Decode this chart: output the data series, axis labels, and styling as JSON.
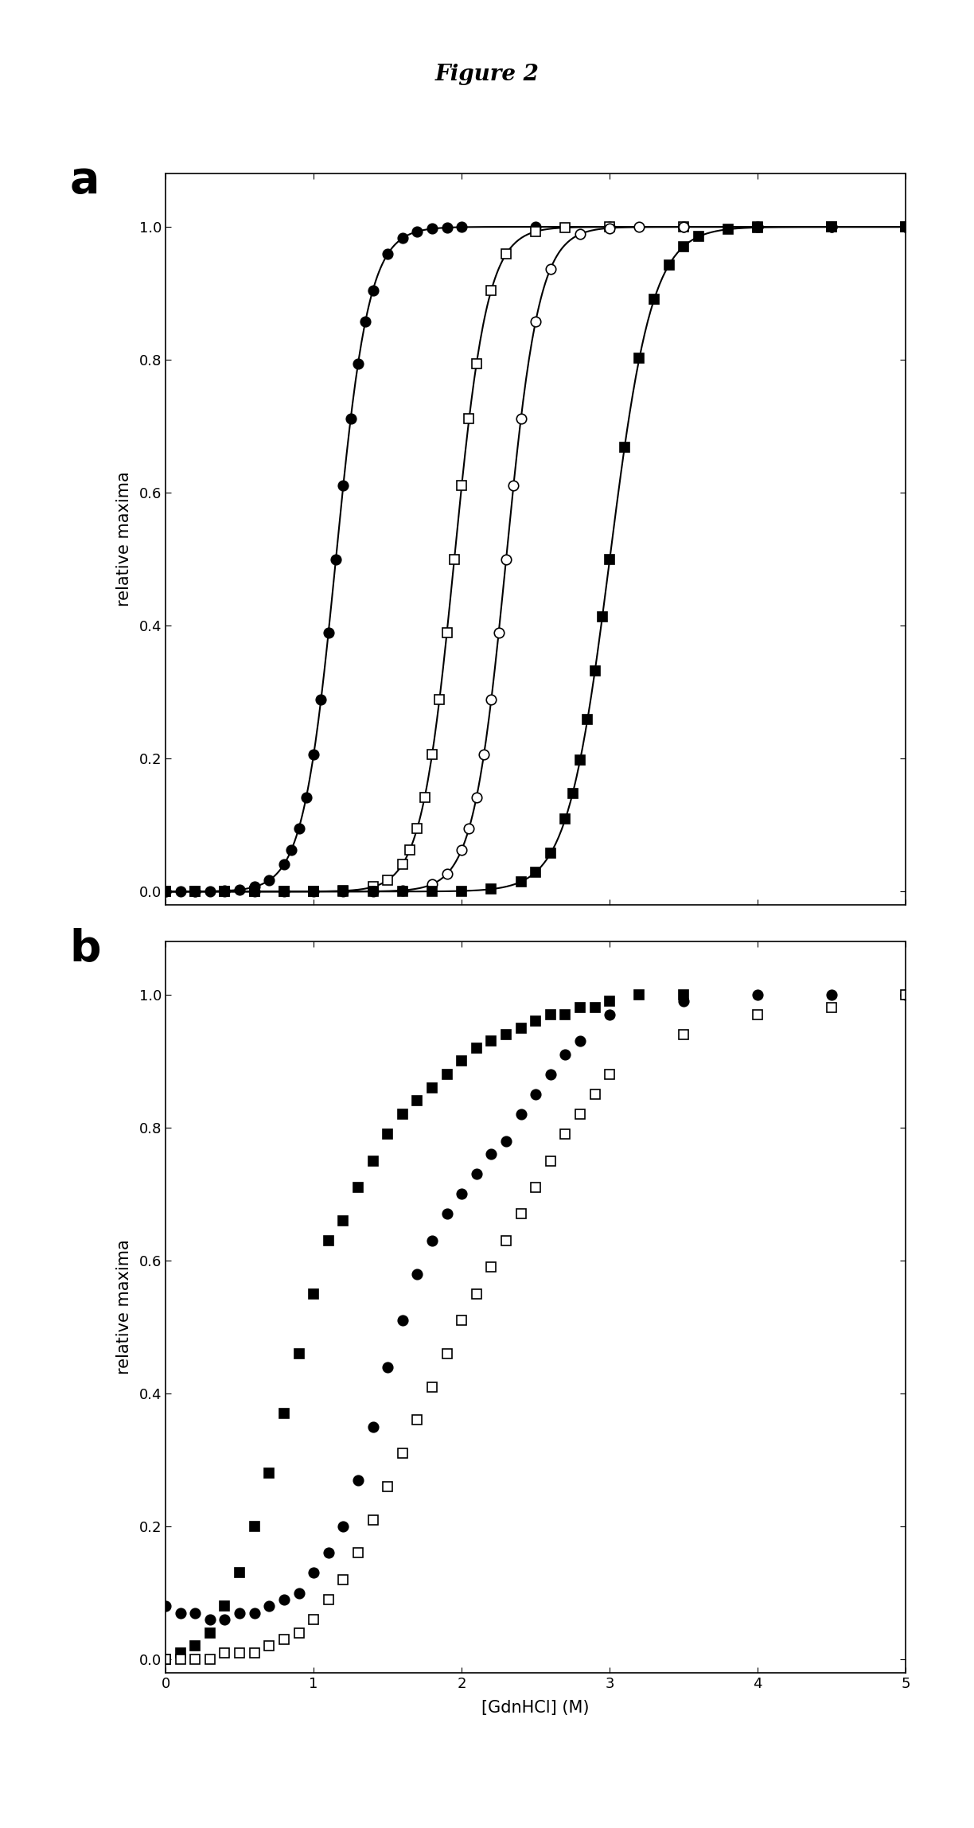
{
  "title": "Figure 2",
  "title_fontsize": 20,
  "title_fontweight": "bold",
  "panel_label_fontsize": 40,
  "panel_label_fontweight": "bold",
  "ylabel": "relative maxima",
  "xlabel": "[GdnHCl] (M)",
  "axis_label_fontsize": 15,
  "tick_fontsize": 13,
  "xlim": [
    0,
    5
  ],
  "ylim_a": [
    -0.02,
    1.08
  ],
  "ylim_b": [
    -0.02,
    1.08
  ],
  "yticks": [
    0,
    0.2,
    0.4,
    0.6,
    0.8,
    1.0
  ],
  "xticks": [
    0,
    1,
    2,
    3,
    4,
    5
  ],
  "panel_a": {
    "series": [
      {
        "name": "filled_circle",
        "marker": "o",
        "filled": true,
        "mid": 1.15,
        "slope": 9.0,
        "x": [
          0.0,
          0.1,
          0.2,
          0.3,
          0.4,
          0.5,
          0.6,
          0.7,
          0.8,
          0.85,
          0.9,
          0.95,
          1.0,
          1.05,
          1.1,
          1.15,
          1.2,
          1.25,
          1.3,
          1.35,
          1.4,
          1.5,
          1.6,
          1.7,
          1.8,
          1.9,
          2.0,
          2.5,
          3.0,
          3.5,
          4.0,
          4.5,
          5.0
        ]
      },
      {
        "name": "open_square",
        "marker": "s",
        "filled": false,
        "mid": 1.95,
        "slope": 9.0,
        "x": [
          0.0,
          0.2,
          0.4,
          0.6,
          0.8,
          1.0,
          1.2,
          1.4,
          1.5,
          1.6,
          1.65,
          1.7,
          1.75,
          1.8,
          1.85,
          1.9,
          1.95,
          2.0,
          2.05,
          2.1,
          2.2,
          2.3,
          2.5,
          2.7,
          3.0,
          3.5,
          4.0,
          4.5,
          5.0
        ]
      },
      {
        "name": "open_circle",
        "marker": "o",
        "filled": false,
        "mid": 2.3,
        "slope": 9.0,
        "x": [
          0.0,
          0.2,
          0.4,
          0.6,
          0.8,
          1.0,
          1.2,
          1.4,
          1.6,
          1.8,
          1.9,
          2.0,
          2.05,
          2.1,
          2.15,
          2.2,
          2.25,
          2.3,
          2.35,
          2.4,
          2.5,
          2.6,
          2.8,
          3.0,
          3.2,
          3.5,
          4.0,
          4.5,
          5.0
        ]
      },
      {
        "name": "filled_square",
        "marker": "s",
        "filled": true,
        "mid": 3.0,
        "slope": 7.0,
        "x": [
          0.0,
          0.2,
          0.4,
          0.6,
          0.8,
          1.0,
          1.2,
          1.4,
          1.6,
          1.8,
          2.0,
          2.2,
          2.4,
          2.5,
          2.6,
          2.7,
          2.75,
          2.8,
          2.85,
          2.9,
          2.95,
          3.0,
          3.1,
          3.2,
          3.3,
          3.4,
          3.5,
          3.6,
          3.8,
          4.0,
          4.5,
          5.0
        ]
      }
    ]
  },
  "panel_b": {
    "series": [
      {
        "name": "filled_square",
        "marker": "s",
        "filled": true,
        "x": [
          0.0,
          0.1,
          0.2,
          0.3,
          0.4,
          0.5,
          0.6,
          0.7,
          0.8,
          0.9,
          1.0,
          1.1,
          1.2,
          1.3,
          1.4,
          1.5,
          1.6,
          1.7,
          1.8,
          1.9,
          2.0,
          2.1,
          2.2,
          2.3,
          2.4,
          2.5,
          2.6,
          2.7,
          2.8,
          2.9,
          3.0,
          3.2,
          3.5
        ],
        "y": [
          0.0,
          0.01,
          0.02,
          0.04,
          0.08,
          0.13,
          0.2,
          0.28,
          0.37,
          0.46,
          0.55,
          0.63,
          0.66,
          0.71,
          0.75,
          0.79,
          0.82,
          0.84,
          0.86,
          0.88,
          0.9,
          0.92,
          0.93,
          0.94,
          0.95,
          0.96,
          0.97,
          0.97,
          0.98,
          0.98,
          0.99,
          1.0,
          1.0
        ]
      },
      {
        "name": "filled_circle",
        "marker": "o",
        "filled": true,
        "x": [
          0.0,
          0.1,
          0.2,
          0.3,
          0.4,
          0.5,
          0.6,
          0.7,
          0.8,
          0.9,
          1.0,
          1.1,
          1.2,
          1.3,
          1.4,
          1.5,
          1.6,
          1.7,
          1.8,
          1.9,
          2.0,
          2.1,
          2.2,
          2.3,
          2.4,
          2.5,
          2.6,
          2.7,
          2.8,
          3.0,
          3.5,
          4.0,
          4.5,
          5.0
        ],
        "y": [
          0.08,
          0.07,
          0.07,
          0.06,
          0.06,
          0.07,
          0.07,
          0.08,
          0.09,
          0.1,
          0.13,
          0.16,
          0.2,
          0.27,
          0.35,
          0.44,
          0.51,
          0.58,
          0.63,
          0.67,
          0.7,
          0.73,
          0.76,
          0.78,
          0.82,
          0.85,
          0.88,
          0.91,
          0.93,
          0.97,
          0.99,
          1.0,
          1.0,
          1.0
        ]
      },
      {
        "name": "open_square",
        "marker": "s",
        "filled": false,
        "x": [
          0.0,
          0.1,
          0.2,
          0.3,
          0.4,
          0.5,
          0.6,
          0.7,
          0.8,
          0.9,
          1.0,
          1.1,
          1.2,
          1.3,
          1.4,
          1.5,
          1.6,
          1.7,
          1.8,
          1.9,
          2.0,
          2.1,
          2.2,
          2.3,
          2.4,
          2.5,
          2.6,
          2.7,
          2.8,
          2.9,
          3.0,
          3.5,
          4.0,
          4.5,
          5.0
        ],
        "y": [
          0.0,
          0.0,
          0.0,
          0.0,
          0.01,
          0.01,
          0.01,
          0.02,
          0.03,
          0.04,
          0.06,
          0.09,
          0.12,
          0.16,
          0.21,
          0.26,
          0.31,
          0.36,
          0.41,
          0.46,
          0.51,
          0.55,
          0.59,
          0.63,
          0.67,
          0.71,
          0.75,
          0.79,
          0.82,
          0.85,
          0.88,
          0.94,
          0.97,
          0.98,
          1.0
        ]
      }
    ]
  }
}
